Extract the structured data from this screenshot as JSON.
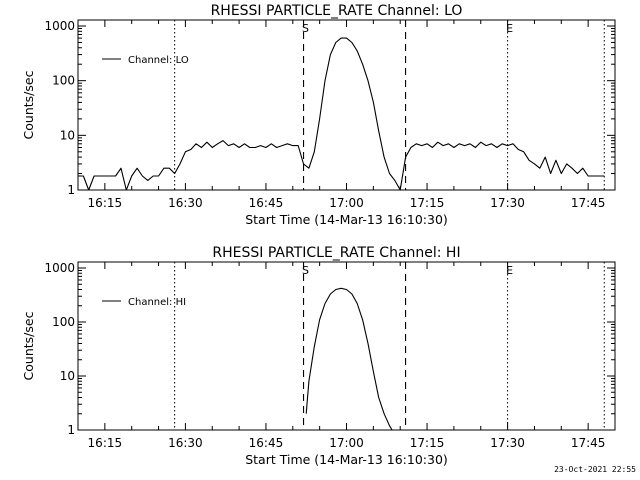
{
  "chart_data": [
    {
      "type": "line",
      "title": "RHESSI PARTICLE_RATE Channel: LO",
      "xlabel": "Start Time (14-Mar-13 16:10:30)",
      "ylabel": "Counts/sec",
      "yscale": "log",
      "ylim": [
        1,
        1000
      ],
      "xlim_minutes_after_1610": [
        0,
        100
      ],
      "x_ticks": [
        "16:15",
        "16:30",
        "16:45",
        "17:00",
        "17:15",
        "17:30",
        "17:45"
      ],
      "y_ticks": [
        "1",
        "10",
        "100",
        "1000"
      ],
      "grid": false,
      "legend": {
        "position": "top-left",
        "entries": [
          "Channel: LO"
        ]
      },
      "markers": [
        {
          "label": "S",
          "time": "16:52",
          "style": "dashed"
        },
        {
          "label": "",
          "time": "17:11",
          "style": "dashed"
        },
        {
          "label": "",
          "time": "16:28",
          "style": "dotted"
        },
        {
          "label": "E",
          "time": "17:30",
          "style": "dotted"
        },
        {
          "label": "",
          "time": "17:48",
          "style": "dotted"
        }
      ],
      "series": [
        {
          "name": "Channel: LO",
          "x": [
            "16:10",
            "16:11",
            "16:12",
            "16:13",
            "16:14",
            "16:15",
            "16:16",
            "16:17",
            "16:18",
            "16:19",
            "16:20",
            "16:21",
            "16:22",
            "16:23",
            "16:24",
            "16:25",
            "16:26",
            "16:27",
            "16:28",
            "16:29",
            "16:30",
            "16:31",
            "16:32",
            "16:33",
            "16:34",
            "16:35",
            "16:36",
            "16:37",
            "16:38",
            "16:39",
            "16:40",
            "16:41",
            "16:42",
            "16:43",
            "16:44",
            "16:45",
            "16:46",
            "16:47",
            "16:48",
            "16:49",
            "16:50",
            "16:51",
            "16:52",
            "16:53",
            "16:54",
            "16:55",
            "16:56",
            "16:57",
            "16:58",
            "16:59",
            "17:00",
            "17:01",
            "17:02",
            "17:03",
            "17:04",
            "17:05",
            "17:06",
            "17:07",
            "17:08",
            "17:09",
            "17:10",
            "17:11",
            "17:12",
            "17:13",
            "17:14",
            "17:15",
            "17:16",
            "17:17",
            "17:18",
            "17:19",
            "17:20",
            "17:21",
            "17:22",
            "17:23",
            "17:24",
            "17:25",
            "17:26",
            "17:27",
            "17:28",
            "17:29",
            "17:30",
            "17:31",
            "17:32",
            "17:33",
            "17:34",
            "17:35",
            "17:36",
            "17:37",
            "17:38",
            "17:39",
            "17:40",
            "17:41",
            "17:42",
            "17:43",
            "17:44",
            "17:45",
            "17:46",
            "17:47",
            "17:48"
          ],
          "values": [
            1.8,
            1.8,
            1,
            1.8,
            1.8,
            1.8,
            1.8,
            1.8,
            2.5,
            1,
            1.8,
            2.5,
            1.8,
            1.5,
            1.8,
            1.8,
            2.5,
            2.5,
            2,
            3,
            5,
            5.5,
            7,
            6,
            7.5,
            6,
            7,
            8,
            6.5,
            7,
            6,
            7,
            6,
            6,
            6.5,
            6,
            7,
            6,
            6.5,
            7,
            6.5,
            6.5,
            3,
            2.5,
            5,
            20,
            100,
            300,
            500,
            600,
            600,
            500,
            350,
            200,
            100,
            40,
            12,
            4,
            2,
            1.5,
            1,
            4,
            6,
            7,
            6.5,
            7,
            6,
            7.5,
            6.5,
            7,
            6,
            7,
            6.5,
            7,
            6,
            7.5,
            6.5,
            7,
            6,
            7,
            6.5,
            7,
            5.5,
            5,
            3.5,
            3,
            2.5,
            4,
            2,
            3.5,
            2,
            3,
            2.5,
            2,
            2.5,
            1.8,
            1.8,
            1.8,
            1.8
          ]
        }
      ]
    },
    {
      "type": "line",
      "title": "RHESSI PARTICLE_RATE Channel: HI",
      "xlabel": "Start Time (14-Mar-13 16:10:30)",
      "ylabel": "Counts/sec",
      "yscale": "log",
      "ylim": [
        1,
        1000
      ],
      "xlim_minutes_after_1610": [
        0,
        100
      ],
      "x_ticks": [
        "16:15",
        "16:30",
        "16:45",
        "17:00",
        "17:15",
        "17:30",
        "17:45"
      ],
      "y_ticks": [
        "1",
        "10",
        "100",
        "1000"
      ],
      "grid": false,
      "legend": {
        "position": "top-left",
        "entries": [
          "Channel: HI"
        ]
      },
      "markers": [
        {
          "label": "S",
          "time": "16:52",
          "style": "dashed"
        },
        {
          "label": "",
          "time": "17:11",
          "style": "dashed"
        },
        {
          "label": "",
          "time": "16:28",
          "style": "dotted"
        },
        {
          "label": "E",
          "time": "17:30",
          "style": "dotted"
        },
        {
          "label": "",
          "time": "17:48",
          "style": "dotted"
        }
      ],
      "series": [
        {
          "name": "Channel: HI",
          "x": [
            "16:52.5",
            "16:53",
            "16:54",
            "16:55",
            "16:56",
            "16:57",
            "16:58",
            "16:59",
            "17:00",
            "17:01",
            "17:02",
            "17:03",
            "17:04",
            "17:05",
            "17:06",
            "17:07",
            "17:08",
            "17:08.5"
          ],
          "values": [
            2,
            8,
            35,
            110,
            220,
            330,
            400,
            420,
            400,
            330,
            220,
            110,
            40,
            12,
            4,
            2,
            1.2,
            1
          ]
        }
      ]
    }
  ],
  "footer": {
    "timestamp": "23-Oct-2021 22:55"
  }
}
